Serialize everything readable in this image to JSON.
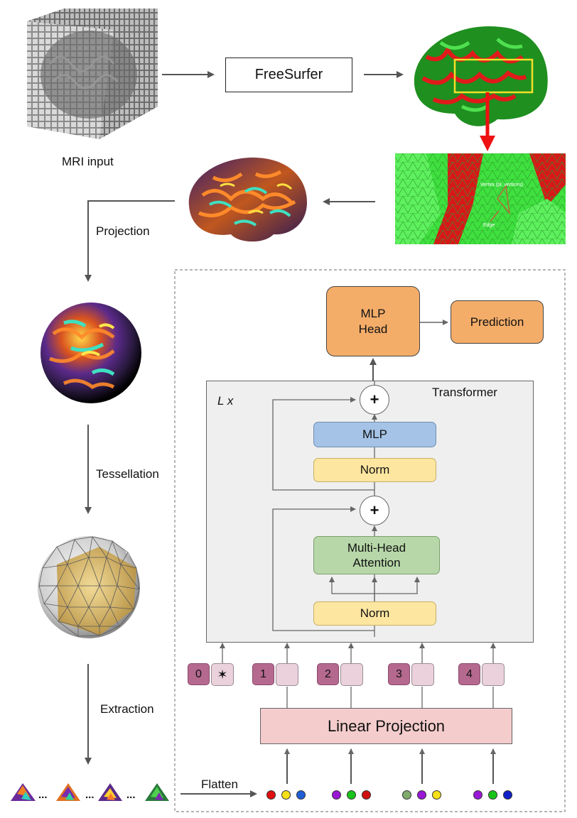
{
  "pipeline": {
    "mri_label": "MRI input",
    "freesurfer_label": "FreeSurfer",
    "vertex_label": "Vertex (pl. vertices)",
    "edge_label": "Edge",
    "projection_label": "Projection",
    "tessellation_label": "Tessellation",
    "extraction_label": "Extraction",
    "flatten_label": "Flatten",
    "ellipsis": "..."
  },
  "model": {
    "mlp_head_line1": "MLP",
    "mlp_head_line2": "Head",
    "prediction": "Prediction",
    "transformer": "Transformer",
    "repeat_label": "L x",
    "mlp": "MLP",
    "norm_upper": "Norm",
    "norm_lower": "Norm",
    "mha_line1": "Multi-Head",
    "mha_line2": "Attention",
    "plus_upper": "+",
    "plus_lower": "+",
    "linear_projection": "Linear Projection"
  },
  "tokens": [
    {
      "index": "0",
      "embedding": "✶"
    },
    {
      "index": "1",
      "embedding": ""
    },
    {
      "index": "2",
      "embedding": ""
    },
    {
      "index": "3",
      "embedding": ""
    },
    {
      "index": "4",
      "embedding": ""
    }
  ],
  "colors": {
    "orange": "#f4ad69",
    "blue": "#a4c3e6",
    "yellow": "#fde6a0",
    "green": "#b7d7a8",
    "pink": "#f4cccc",
    "token": "#b5698f",
    "token_light": "#ead1dc",
    "highlight_arrow": "#ee1111"
  },
  "patch_dots": [
    [
      "#e01010",
      "#f5e01a",
      "#1f5fd6"
    ],
    [
      "#9a17d6",
      "#19c419",
      "#d01010"
    ],
    [
      "#7faa6a",
      "#9a17d6",
      "#f5e01a"
    ],
    [
      "#9a17d6",
      "#19c419",
      "#1020c8"
    ]
  ]
}
